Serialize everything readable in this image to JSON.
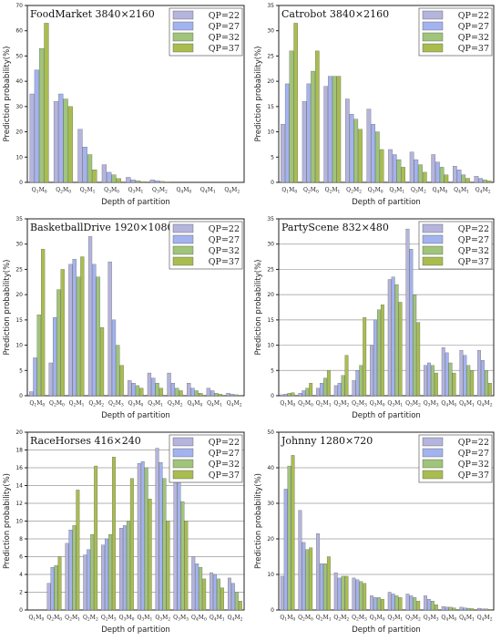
{
  "colors": {
    "QP=22": "#b4b4dd",
    "QP=27": "#a3b3ef",
    "QP=32": "#9fc47a",
    "QP=37": "#a9bd4f"
  },
  "chart_data": [
    {
      "type": "bar",
      "title": "FoodMarket 3840×2160",
      "xlabel": "Depth of partition",
      "ylabel": "Prediction probability(%)",
      "ylim": [
        0,
        70
      ],
      "yticks": [
        0,
        10,
        20,
        30,
        40,
        50,
        60,
        70
      ],
      "grid": false,
      "legend": "top-right",
      "categories": [
        {
          "main": "Q",
          "sub": "1",
          "sub2": "M",
          "sub3": "0"
        },
        {
          "main": "Q",
          "sub": "2",
          "sub2": "M",
          "sub3": "0"
        },
        {
          "main": "Q",
          "sub": "2",
          "sub2": "M",
          "sub3": "1"
        },
        {
          "main": "Q",
          "sub": "3",
          "sub2": "M",
          "sub3": "0"
        },
        {
          "main": "Q",
          "sub": "3",
          "sub2": "M",
          "sub3": "1"
        },
        {
          "main": "Q",
          "sub": "3",
          "sub2": "M",
          "sub3": "2"
        },
        {
          "main": "Q",
          "sub": "4",
          "sub2": "M",
          "sub3": "0"
        },
        {
          "main": "Q",
          "sub": "4",
          "sub2": "M",
          "sub3": "1"
        },
        {
          "main": "Q",
          "sub": "4",
          "sub2": "M",
          "sub3": "2"
        }
      ],
      "series": [
        {
          "name": "QP=22",
          "values": [
            35,
            32,
            21,
            7,
            2,
            1,
            0,
            0,
            0
          ]
        },
        {
          "name": "QP=27",
          "values": [
            44.5,
            35,
            14,
            4,
            1,
            0.6,
            0,
            0,
            0
          ]
        },
        {
          "name": "QP=32",
          "values": [
            53,
            33,
            11,
            3,
            0.6,
            0.4,
            0,
            0,
            0
          ]
        },
        {
          "name": "QP=37",
          "values": [
            63,
            30,
            5,
            1.5,
            0.3,
            0.2,
            0,
            0,
            0
          ]
        }
      ]
    },
    {
      "type": "bar",
      "title": "Catrobot 3840×2160",
      "xlabel": "Depth of partition",
      "ylabel": "Prediction probability(%)",
      "ylim": [
        0,
        35
      ],
      "yticks": [
        0,
        5,
        10,
        15,
        20,
        25,
        30,
        35
      ],
      "grid": false,
      "legend": "top-right",
      "categories": [
        {
          "main": "Q",
          "sub": "1",
          "sub2": "M",
          "sub3": "0"
        },
        {
          "main": "Q",
          "sub": "2",
          "sub2": "M",
          "sub3": "0"
        },
        {
          "main": "Q",
          "sub": "2",
          "sub2": "M",
          "sub3": "1"
        },
        {
          "main": "Q",
          "sub": "2",
          "sub2": "M",
          "sub3": "2"
        },
        {
          "main": "Q",
          "sub": "3",
          "sub2": "M",
          "sub3": "0"
        },
        {
          "main": "Q",
          "sub": "3",
          "sub2": "M",
          "sub3": "1"
        },
        {
          "main": "Q",
          "sub": "3",
          "sub2": "M",
          "sub3": "2"
        },
        {
          "main": "Q",
          "sub": "4",
          "sub2": "M",
          "sub3": "0"
        },
        {
          "main": "Q",
          "sub": "4",
          "sub2": "M",
          "sub3": "1"
        },
        {
          "main": "Q",
          "sub": "4",
          "sub2": "M",
          "sub3": "2"
        }
      ],
      "series": [
        {
          "name": "QP=22",
          "values": [
            11.5,
            16,
            19,
            16.5,
            14.5,
            6.5,
            6,
            5.5,
            3.2,
            1.2
          ]
        },
        {
          "name": "QP=27",
          "values": [
            19.5,
            19.5,
            21,
            13.5,
            11.5,
            5.5,
            4.5,
            4,
            2.5,
            0.8
          ]
        },
        {
          "name": "QP=32",
          "values": [
            26,
            22,
            21,
            12.5,
            10,
            4.5,
            3.5,
            3,
            1.5,
            0.5
          ]
        },
        {
          "name": "QP=37",
          "values": [
            31.5,
            26,
            21,
            10.5,
            6.5,
            3,
            2,
            1.5,
            0.8,
            0.3
          ]
        }
      ]
    },
    {
      "type": "bar",
      "title": "BasketballDrive 1920×1080",
      "xlabel": "Depth of partition",
      "ylabel": "Prediction probability(%)",
      "ylim": [
        0,
        35
      ],
      "yticks": [
        0,
        5,
        10,
        15,
        20,
        25,
        30,
        35
      ],
      "grid": false,
      "legend": "top-right",
      "categories": [
        {
          "main": "Q",
          "sub": "1",
          "sub2": "M",
          "sub3": "0"
        },
        {
          "main": "Q",
          "sub": "2",
          "sub2": "M",
          "sub3": "0"
        },
        {
          "main": "Q",
          "sub": "2",
          "sub2": "M",
          "sub3": "1"
        },
        {
          "main": "Q",
          "sub": "2",
          "sub2": "M",
          "sub3": "2"
        },
        {
          "main": "Q",
          "sub": "2",
          "sub2": "M",
          "sub3": "3"
        },
        {
          "main": "Q",
          "sub": "3",
          "sub2": "M",
          "sub3": "0"
        },
        {
          "main": "Q",
          "sub": "3",
          "sub2": "M",
          "sub3": "1"
        },
        {
          "main": "Q",
          "sub": "3",
          "sub2": "M",
          "sub3": "2"
        },
        {
          "main": "Q",
          "sub": "4",
          "sub2": "M",
          "sub3": "0"
        },
        {
          "main": "Q",
          "sub": "4",
          "sub2": "M",
          "sub3": "1"
        },
        {
          "main": "Q",
          "sub": "4",
          "sub2": "M",
          "sub3": "2"
        }
      ],
      "series": [
        {
          "name": "QP=22",
          "values": [
            0.8,
            6.5,
            26,
            31.5,
            26.5,
            3,
            4.5,
            4.5,
            2.5,
            1.5,
            0.5
          ]
        },
        {
          "name": "QP=27",
          "values": [
            7.5,
            15.5,
            27,
            26,
            15,
            2.5,
            3.5,
            2.5,
            1.5,
            1,
            0.3
          ]
        },
        {
          "name": "QP=32",
          "values": [
            16,
            21,
            23.5,
            23.5,
            10,
            2,
            2.5,
            1.5,
            1,
            0.5,
            0.2
          ]
        },
        {
          "name": "QP=37",
          "values": [
            29,
            25,
            27.5,
            13.5,
            6,
            1.5,
            1.5,
            1,
            0.5,
            0.3,
            0.1
          ]
        }
      ]
    },
    {
      "type": "bar",
      "title": "PartyScene 832×480",
      "xlabel": "Depth of partition",
      "ylabel": "Prediction probability(%)",
      "ylim": [
        0,
        35
      ],
      "yticks": [
        0,
        5,
        10,
        15,
        20,
        25,
        30,
        35
      ],
      "grid": true,
      "legend": "top-right",
      "categories": [
        {
          "main": "Q",
          "sub": "1",
          "sub2": "M",
          "sub3": "0"
        },
        {
          "main": "Q",
          "sub": "2",
          "sub2": "M",
          "sub3": "0"
        },
        {
          "main": "Q",
          "sub": "2",
          "sub2": "M",
          "sub3": "1"
        },
        {
          "main": "Q",
          "sub": "2",
          "sub2": "M",
          "sub3": "2"
        },
        {
          "main": "Q",
          "sub": "2",
          "sub2": "M",
          "sub3": "3"
        },
        {
          "main": "Q",
          "sub": "3",
          "sub2": "M",
          "sub3": "0"
        },
        {
          "main": "Q",
          "sub": "3",
          "sub2": "M",
          "sub3": "1"
        },
        {
          "main": "Q",
          "sub": "3",
          "sub2": "M",
          "sub3": "2"
        },
        {
          "main": "Q",
          "sub": "3",
          "sub2": "M",
          "sub3": "3"
        },
        {
          "main": "Q",
          "sub": "4",
          "sub2": "M",
          "sub3": "0"
        },
        {
          "main": "Q",
          "sub": "4",
          "sub2": "M",
          "sub3": "1"
        },
        {
          "main": "Q",
          "sub": "4",
          "sub2": "M",
          "sub3": "2"
        }
      ],
      "series": [
        {
          "name": "QP=22",
          "values": [
            0.2,
            0.5,
            1.5,
            2,
            3,
            10,
            23,
            33,
            6,
            9.5,
            9,
            9
          ]
        },
        {
          "name": "QP=27",
          "values": [
            0.3,
            1,
            2.5,
            2.5,
            5,
            15,
            23.5,
            29,
            6.5,
            8.5,
            8,
            7
          ]
        },
        {
          "name": "QP=32",
          "values": [
            0.5,
            1.5,
            3.5,
            4,
            6,
            17,
            22,
            20,
            6,
            6.5,
            6,
            5
          ]
        },
        {
          "name": "QP=37",
          "values": [
            0.6,
            2.5,
            5,
            8,
            15.5,
            18,
            18.5,
            14.5,
            4.5,
            4.5,
            5,
            2.5
          ]
        }
      ]
    },
    {
      "type": "bar",
      "title": "RaceHorses 416×240",
      "xlabel": "Depth of partition",
      "ylabel": "Prediction probability(%)",
      "ylim": [
        0,
        20
      ],
      "yticks": [
        0,
        2,
        4,
        6,
        8,
        10,
        12,
        14,
        16,
        18,
        20
      ],
      "grid": true,
      "legend": "top-right",
      "categories": [
        {
          "main": "Q",
          "sub": "1",
          "sub2": "M",
          "sub3": "0"
        },
        {
          "main": "Q",
          "sub": "2",
          "sub2": "M",
          "sub3": "0"
        },
        {
          "main": "Q",
          "sub": "2",
          "sub2": "M",
          "sub3": "1"
        },
        {
          "main": "Q",
          "sub": "2",
          "sub2": "M",
          "sub3": "2"
        },
        {
          "main": "Q",
          "sub": "2",
          "sub2": "M",
          "sub3": "3"
        },
        {
          "main": "Q",
          "sub": "3",
          "sub2": "M",
          "sub3": "0"
        },
        {
          "main": "Q",
          "sub": "3",
          "sub2": "M",
          "sub3": "1"
        },
        {
          "main": "Q",
          "sub": "3",
          "sub2": "M",
          "sub3": "2"
        },
        {
          "main": "Q",
          "sub": "3",
          "sub2": "M",
          "sub3": "3"
        },
        {
          "main": "Q",
          "sub": "4",
          "sub2": "M",
          "sub3": "0"
        },
        {
          "main": "Q",
          "sub": "4",
          "sub2": "M",
          "sub3": "1"
        },
        {
          "main": "Q",
          "sub": "4",
          "sub2": "M",
          "sub3": "2"
        }
      ],
      "series": [
        {
          "name": "QP=22",
          "values": [
            0,
            3,
            7.5,
            6.2,
            7.3,
            9.2,
            16.5,
            18.2,
            17.6,
            6,
            4.2,
            3.6
          ]
        },
        {
          "name": "QP=27",
          "values": [
            0,
            4.8,
            9,
            6.8,
            8,
            9.5,
            16.7,
            16.6,
            16,
            5.2,
            4,
            3
          ]
        },
        {
          "name": "QP=32",
          "values": [
            0,
            5,
            9.5,
            8.5,
            8.5,
            10,
            16,
            14.8,
            12.2,
            4.8,
            3.5,
            2
          ]
        },
        {
          "name": "QP=37",
          "values": [
            0,
            6,
            13.5,
            16.2,
            17.2,
            14.8,
            12.5,
            10,
            10,
            3.5,
            2.5,
            1
          ]
        }
      ]
    },
    {
      "type": "bar",
      "title": "Johnny 1280×720",
      "xlabel": "Depth of partition",
      "ylabel": "Prediction probability(%)",
      "ylim": [
        0,
        50
      ],
      "yticks": [
        0,
        10,
        20,
        30,
        40,
        50
      ],
      "grid": true,
      "legend": "top-right",
      "categories": [
        {
          "main": "Q",
          "sub": "1",
          "sub2": "M",
          "sub3": "0"
        },
        {
          "main": "Q",
          "sub": "2",
          "sub2": "M",
          "sub3": "0"
        },
        {
          "main": "Q",
          "sub": "2",
          "sub2": "M",
          "sub3": "1"
        },
        {
          "main": "Q",
          "sub": "2",
          "sub2": "M",
          "sub3": "2"
        },
        {
          "main": "Q",
          "sub": "2",
          "sub2": "M",
          "sub3": "3"
        },
        {
          "main": "Q",
          "sub": "3",
          "sub2": "M",
          "sub3": "0"
        },
        {
          "main": "Q",
          "sub": "3",
          "sub2": "M",
          "sub3": "1"
        },
        {
          "main": "Q",
          "sub": "3",
          "sub2": "M",
          "sub3": "2"
        },
        {
          "main": "Q",
          "sub": "3",
          "sub2": "M",
          "sub3": "3"
        },
        {
          "main": "Q",
          "sub": "4",
          "sub2": "M",
          "sub3": "0"
        },
        {
          "main": "Q",
          "sub": "4",
          "sub2": "M",
          "sub3": "1"
        },
        {
          "main": "Q",
          "sub": "4",
          "sub2": "M",
          "sub3": "2"
        }
      ],
      "series": [
        {
          "name": "QP=22",
          "values": [
            9.5,
            28,
            21.5,
            10.5,
            9,
            4,
            5,
            4.5,
            4,
            1,
            0.8,
            0.5
          ]
        },
        {
          "name": "QP=27",
          "values": [
            34,
            19,
            13,
            9,
            8.5,
            3.5,
            4.5,
            4,
            3,
            0.8,
            0.6,
            0.3
          ]
        },
        {
          "name": "QP=32",
          "values": [
            40.5,
            17,
            13,
            9.5,
            8,
            3.5,
            4,
            3.5,
            2.5,
            0.8,
            0.5,
            0.3
          ]
        },
        {
          "name": "QP=37",
          "values": [
            43.5,
            17.5,
            15,
            9.5,
            7.5,
            3,
            3.5,
            2.5,
            1.5,
            0.6,
            0.4,
            0.2
          ]
        }
      ]
    }
  ]
}
